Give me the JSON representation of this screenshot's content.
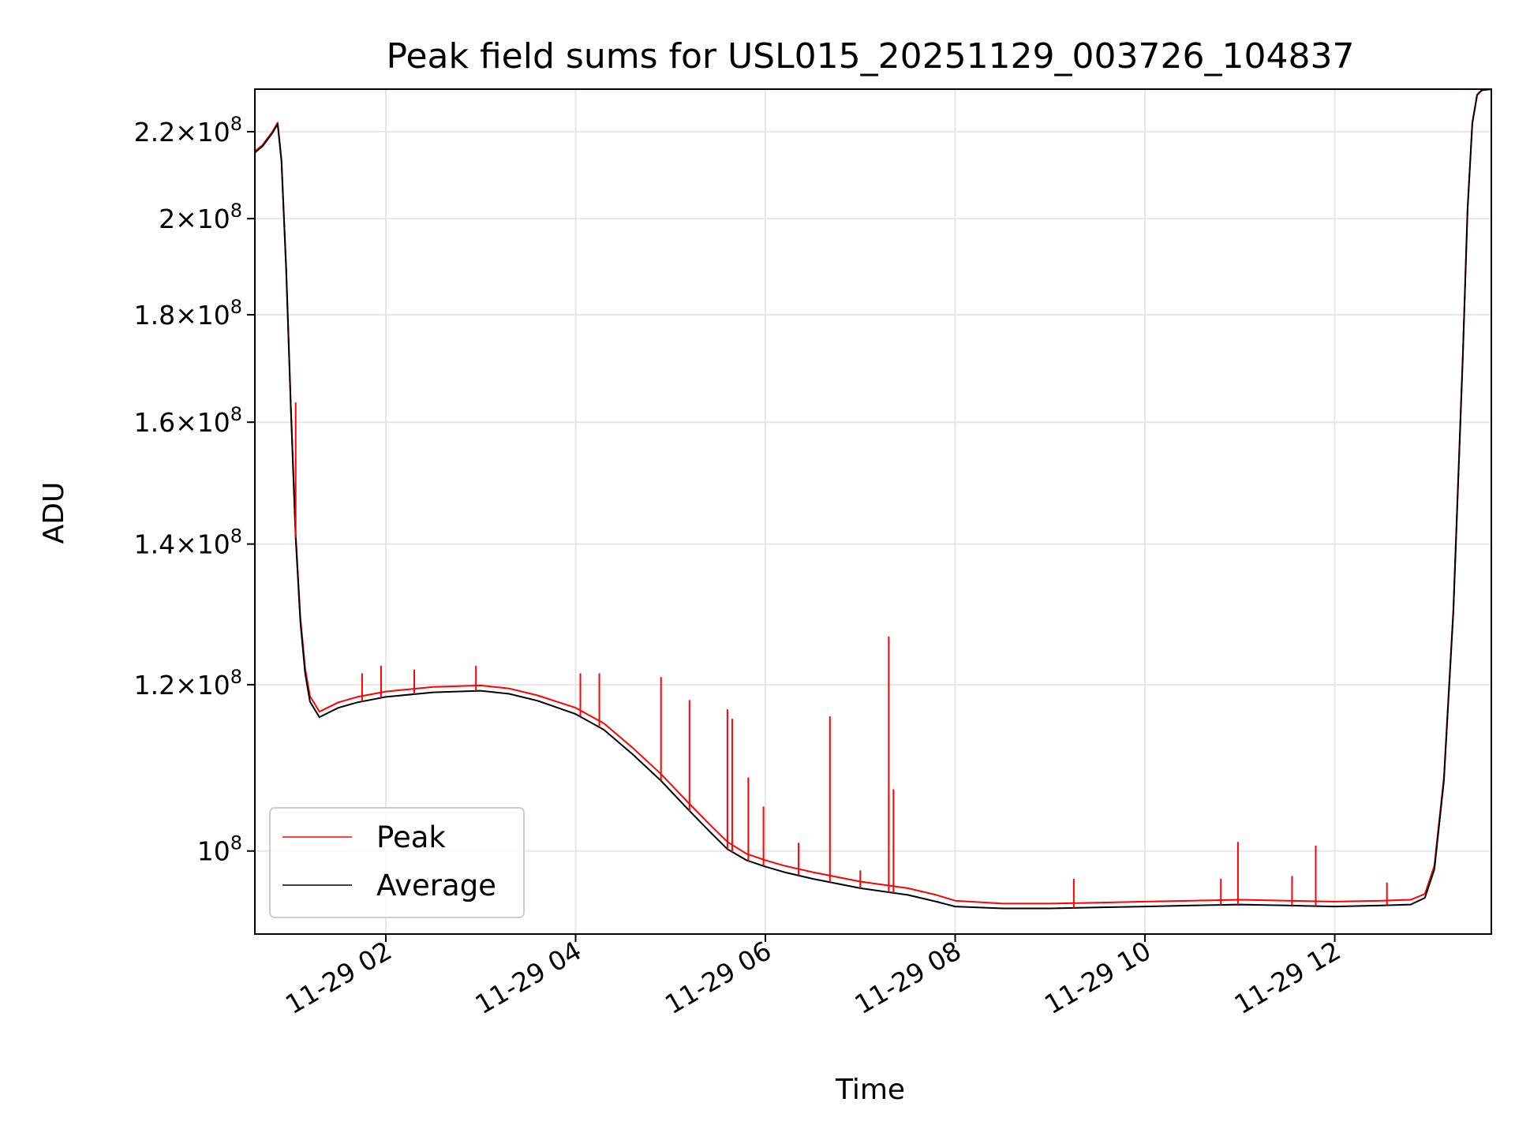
{
  "chart_data": {
    "type": "line",
    "title": "Peak field sums for USL015_20251129_003726_104837",
    "xlabel": "Time",
    "ylabel": "ADU",
    "yscale": "log",
    "grid": true,
    "legend_loc": "lower-left",
    "x_unit": "hours since 2025-11-29 00:00",
    "xlim": [
      0.62,
      13.65
    ],
    "ylim": [
      91300000,
      230500000
    ],
    "x_ticks": [
      {
        "value": 2,
        "label": "11-29 02"
      },
      {
        "value": 4,
        "label": "11-29 04"
      },
      {
        "value": 6,
        "label": "11-29 06"
      },
      {
        "value": 8,
        "label": "11-29 08"
      },
      {
        "value": 10,
        "label": "11-29 10"
      },
      {
        "value": 12,
        "label": "11-29 12"
      }
    ],
    "y_ticks": [
      {
        "value": 100000000,
        "mantissa": "",
        "exponent": "8"
      },
      {
        "value": 120000000,
        "mantissa": "1.2",
        "exponent": "8"
      },
      {
        "value": 140000000,
        "mantissa": "1.4",
        "exponent": "8"
      },
      {
        "value": 160000000,
        "mantissa": "1.6",
        "exponent": "8"
      },
      {
        "value": 180000000,
        "mantissa": "1.8",
        "exponent": "8"
      },
      {
        "value": 200000000,
        "mantissa": "2",
        "exponent": "8"
      },
      {
        "value": 220000000,
        "mantissa": "2.2",
        "exponent": "8"
      }
    ],
    "series": [
      {
        "name": "Average",
        "color": "#000000",
        "x": [
          0.62,
          0.7,
          0.8,
          0.86,
          0.9,
          0.95,
          1.0,
          1.05,
          1.1,
          1.15,
          1.2,
          1.3,
          1.4,
          1.5,
          1.7,
          2.0,
          2.5,
          3.0,
          3.3,
          3.6,
          4.0,
          4.3,
          4.6,
          4.9,
          5.2,
          5.4,
          5.6,
          5.8,
          6.0,
          6.2,
          6.5,
          7.0,
          7.5,
          7.8,
          8.0,
          8.5,
          9.0,
          9.5,
          10.0,
          10.5,
          11.0,
          11.5,
          12.0,
          12.5,
          12.8,
          12.95,
          13.05,
          13.15,
          13.25,
          13.35,
          13.4,
          13.45,
          13.5,
          13.55,
          13.65
        ],
        "values": [
          215000000,
          216500000,
          219500000,
          221800000,
          213000000,
          189000000,
          162000000,
          141000000,
          128500000,
          121500000,
          117800000,
          115800000,
          116400000,
          117000000,
          117700000,
          118400000,
          119000000,
          119200000,
          118800000,
          117900000,
          116200000,
          114200000,
          111200000,
          108000000,
          104500000,
          102300000,
          100200000,
          99000000,
          98300000,
          97700000,
          97000000,
          96000000,
          95300000,
          94600000,
          94100000,
          93900000,
          93900000,
          94000000,
          94100000,
          94200000,
          94300000,
          94200000,
          94100000,
          94200000,
          94300000,
          95000000,
          98000000,
          108000000,
          130000000,
          172000000,
          202000000,
          222000000,
          229000000,
          230200000,
          230500000
        ]
      },
      {
        "name": "Peak",
        "color": "#ff0000",
        "x": [
          0.62,
          0.7,
          0.8,
          0.86,
          0.9,
          0.95,
          1.0,
          1.05,
          1.1,
          1.15,
          1.2,
          1.3,
          1.4,
          1.5,
          1.7,
          2.0,
          2.5,
          3.0,
          3.3,
          3.6,
          4.0,
          4.3,
          4.6,
          4.9,
          5.2,
          5.4,
          5.6,
          5.8,
          6.0,
          6.2,
          6.5,
          7.0,
          7.5,
          7.8,
          8.0,
          8.5,
          9.0,
          9.5,
          10.0,
          10.5,
          11.0,
          11.5,
          12.0,
          12.5,
          12.8,
          12.95,
          13.05,
          13.15,
          13.25,
          13.35,
          13.4,
          13.45,
          13.5,
          13.55,
          13.65
        ],
        "values": [
          215300000,
          216800000,
          219800000,
          222200000,
          213400000,
          189500000,
          162500000,
          141600000,
          129100000,
          122200000,
          118500000,
          116500000,
          117100000,
          117700000,
          118400000,
          119100000,
          119700000,
          119900000,
          119500000,
          118600000,
          117000000,
          115000000,
          112000000,
          108800000,
          105300000,
          103100000,
          101000000,
          99700000,
          99000000,
          98400000,
          97700000,
          96700000,
          96000000,
          95300000,
          94700000,
          94400000,
          94400000,
          94500000,
          94600000,
          94700000,
          94800000,
          94700000,
          94600000,
          94700000,
          94800000,
          95400000,
          98400000,
          108400000,
          130400000,
          172400000,
          202300000,
          222200000,
          229100000,
          230300000,
          230500000
        ]
      }
    ],
    "spikes": [
      {
        "x": 1.05,
        "top": 163500000,
        "series": "Peak"
      },
      {
        "x": 1.75,
        "top": 121500000,
        "series": "Peak"
      },
      {
        "x": 1.95,
        "top": 122500000,
        "series": "Peak"
      },
      {
        "x": 2.3,
        "top": 122000000,
        "series": "Peak"
      },
      {
        "x": 2.95,
        "top": 122500000,
        "series": "Peak"
      },
      {
        "x": 4.05,
        "top": 121500000,
        "series": "Peak"
      },
      {
        "x": 4.25,
        "top": 121500000,
        "series": "Peak"
      },
      {
        "x": 4.9,
        "top": 121000000,
        "series": "Peak"
      },
      {
        "x": 5.2,
        "top": 118000000,
        "series": "Peak"
      },
      {
        "x": 5.6,
        "top": 116800000,
        "series": "Peak"
      },
      {
        "x": 5.65,
        "top": 115600000,
        "series": "Peak"
      },
      {
        "x": 5.82,
        "top": 108400000,
        "series": "Peak"
      },
      {
        "x": 5.98,
        "top": 105000000,
        "series": "Peak"
      },
      {
        "x": 6.35,
        "top": 100900000,
        "series": "Peak"
      },
      {
        "x": 6.68,
        "top": 115900000,
        "series": "Peak"
      },
      {
        "x": 7.0,
        "top": 97900000,
        "series": "Peak"
      },
      {
        "x": 7.3,
        "top": 126500000,
        "series": "Peak"
      },
      {
        "x": 7.35,
        "top": 107000000,
        "series": "Peak"
      },
      {
        "x": 9.25,
        "top": 97000000,
        "series": "Peak"
      },
      {
        "x": 10.8,
        "top": 97000000,
        "series": "Peak"
      },
      {
        "x": 10.98,
        "top": 101000000,
        "series": "Peak"
      },
      {
        "x": 11.55,
        "top": 97300000,
        "series": "Peak"
      },
      {
        "x": 11.8,
        "top": 100600000,
        "series": "Peak"
      },
      {
        "x": 12.55,
        "top": 96600000,
        "series": "Peak"
      }
    ]
  }
}
